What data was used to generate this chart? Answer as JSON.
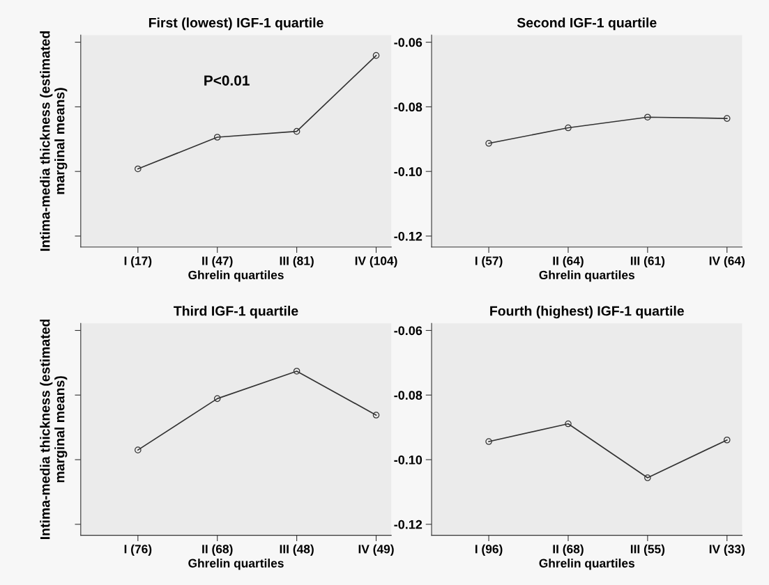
{
  "chart_data": [
    {
      "type": "line",
      "title": "First (lowest) IGF-1 quartile",
      "xlabel": "Ghrelin quartiles",
      "ylabel": "Intima-media thickness (estimated\nmarginal means)",
      "categories": [
        "I (17)",
        "II (47)",
        "III (81)",
        "IV (104)"
      ],
      "values": [
        -0.0992,
        -0.0894,
        -0.0876,
        -0.0641
      ],
      "color": "#333333",
      "marker": "circle",
      "ylim": [
        -0.1234,
        -0.0578
      ],
      "yticks": [
        {
          "value": -0.06,
          "label": null
        },
        {
          "value": -0.08,
          "label": null
        },
        {
          "value": -0.1,
          "label": null
        },
        {
          "value": -0.12,
          "label": null
        }
      ],
      "tick_labels": "x",
      "annotations": [
        "P<0.01"
      ],
      "grid": false,
      "legend": false
    },
    {
      "type": "line",
      "title": "Second IGF-1 quartile",
      "xlabel": "Ghrelin quartiles",
      "categories": [
        "I (57)",
        "II (64)",
        "III (61)",
        "IV (64)"
      ],
      "values": [
        -0.0913,
        -0.0865,
        -0.0832,
        -0.0836
      ],
      "color": "#333333",
      "marker": "circle",
      "ylim": [
        -0.1234,
        -0.0578
      ],
      "yticks": [
        {
          "value": -0.06,
          "label": "-0.06"
        },
        {
          "value": -0.08,
          "label": "-0.08"
        },
        {
          "value": -0.1,
          "label": "-0.10"
        },
        {
          "value": -0.12,
          "label": "-0.12"
        }
      ],
      "grid": false,
      "legend": false
    },
    {
      "type": "line",
      "title": "Third IGF-1 quartile",
      "xlabel": "Ghrelin quartiles",
      "ylabel": "Intima-media thickness (estimated\nmarginal means)",
      "categories": [
        "I (76)",
        "II (68)",
        "III (48)",
        "IV (49)"
      ],
      "values": [
        -0.097,
        -0.0811,
        -0.0726,
        -0.0862
      ],
      "color": "#333333",
      "marker": "circle",
      "ylim": [
        -0.1234,
        -0.0578
      ],
      "yticks": [
        {
          "value": -0.06,
          "label": null
        },
        {
          "value": -0.08,
          "label": null
        },
        {
          "value": -0.1,
          "label": null
        },
        {
          "value": -0.12,
          "label": null
        }
      ],
      "tick_labels": "x",
      "grid": false,
      "legend": false
    },
    {
      "type": "line",
      "title": "Fourth (highest) IGF-1 quartile",
      "xlabel": "Ghrelin quartiles",
      "categories": [
        "I (96)",
        "II (68)",
        "III (55)",
        "IV (33)"
      ],
      "values": [
        -0.0944,
        -0.0889,
        -0.1056,
        -0.0939
      ],
      "color": "#333333",
      "marker": "circle",
      "ylim": [
        -0.1234,
        -0.0578
      ],
      "yticks": [
        {
          "value": -0.06,
          "label": "-0.06"
        },
        {
          "value": -0.08,
          "label": "-0.08"
        },
        {
          "value": -0.1,
          "label": "-0.10"
        },
        {
          "value": -0.12,
          "label": "-0.12"
        }
      ],
      "grid": false,
      "legend": false
    }
  ]
}
